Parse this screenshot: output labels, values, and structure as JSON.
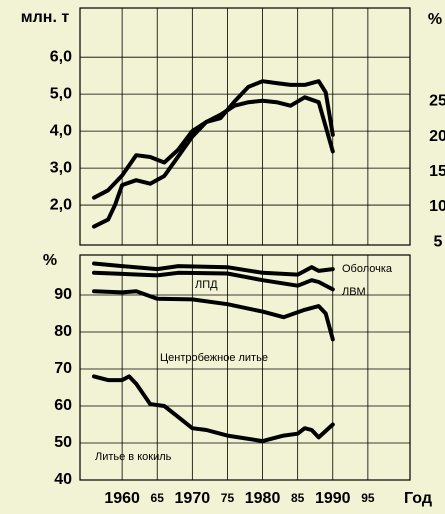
{
  "chart_data": [
    {
      "type": "line",
      "ylabel": "млн. т",
      "y2label": "%",
      "xlim": [
        1954,
        2001
      ],
      "ylim": [
        0.92,
        7.33
      ],
      "y2lim": [
        4.58,
        38.3
      ],
      "yticks": [
        {
          "value": 2,
          "label": "2,0"
        },
        {
          "value": 3,
          "label": "3,0"
        },
        {
          "value": 4,
          "label": "4,0"
        },
        {
          "value": 5,
          "label": "5,0"
        },
        {
          "value": 6,
          "label": "6,0"
        }
      ],
      "y2ticks": [
        5,
        10,
        15,
        20,
        25
      ],
      "grid": true,
      "series": [
        {
          "color": "#000000",
          "x": [
            1956,
            1958,
            1960,
            1962,
            1964,
            1966,
            1968,
            1970,
            1972,
            1974,
            1976,
            1978,
            1980,
            1982,
            1984,
            1986,
            1988,
            1989,
            1990
          ],
          "values": [
            2.2,
            2.4,
            2.8,
            3.35,
            3.3,
            3.15,
            3.5,
            4.0,
            4.25,
            4.35,
            4.8,
            5.2,
            5.35,
            5.3,
            5.25,
            5.25,
            5.35,
            5.05,
            3.9
          ]
        },
        {
          "color": "#000000",
          "axis": "y2",
          "x": [
            1956,
            1958,
            1959,
            1960,
            1962,
            1964,
            1966,
            1968,
            1970,
            1972,
            1974,
            1976,
            1978,
            1980,
            1982,
            1984,
            1986,
            1988,
            1990
          ],
          "values": [
            7.2,
            8.2,
            10.3,
            13.1,
            13.8,
            13.3,
            14.4,
            17.2,
            20,
            22.1,
            23.1,
            24.4,
            24.9,
            25.1,
            24.9,
            24.4,
            25.6,
            24.9,
            17.9
          ]
        }
      ]
    },
    {
      "type": "line",
      "ylabel": "%",
      "xlabel": "Год",
      "xlim": [
        1954,
        2001
      ],
      "ylim": [
        40,
        100.8
      ],
      "xticks": [
        1960,
        {
          "value": 1965,
          "label": "65"
        },
        1970,
        {
          "value": 1975,
          "label": "75"
        },
        1980,
        {
          "value": 1985,
          "label": "85"
        },
        1990,
        {
          "value": 1995,
          "label": "95"
        }
      ],
      "yticks": [
        40,
        50,
        60,
        70,
        80,
        90
      ],
      "grid": true,
      "annotations": [
        "ЛПД"
      ],
      "series": [
        {
          "name": "Оболочка",
          "color": "#000000",
          "x": [
            1956,
            1960,
            1965,
            1968,
            1975,
            1980,
            1985,
            1987,
            1988,
            1990
          ],
          "values": [
            98.5,
            97.8,
            97,
            97.8,
            97.5,
            96,
            95.5,
            97.5,
            96.5,
            97
          ]
        },
        {
          "name": "ЛВМ",
          "color": "#000000",
          "x": [
            1956,
            1960,
            1965,
            1968,
            1975,
            1980,
            1985,
            1987,
            1988,
            1990
          ],
          "values": [
            96,
            95.7,
            95.3,
            96,
            95.8,
            94,
            92.5,
            94,
            93.5,
            91.5
          ]
        },
        {
          "name": "Центробежное литье",
          "color": "#000000",
          "x": [
            1956,
            1960,
            1962,
            1965,
            1970,
            1975,
            1980,
            1983,
            1986,
            1988,
            1989,
            1990
          ],
          "values": [
            91,
            90.7,
            91,
            89,
            88.8,
            87.5,
            85.5,
            84,
            86,
            87,
            85,
            78
          ]
        },
        {
          "name": "Литье в кокиль",
          "color": "#000000",
          "x": [
            1956,
            1958,
            1960,
            1961,
            1962,
            1964,
            1966,
            1968,
            1970,
            1972,
            1975,
            1980,
            1983,
            1985,
            1986,
            1987,
            1988,
            1990
          ],
          "values": [
            68,
            67,
            67,
            68,
            66,
            60.5,
            60,
            57,
            54,
            53.5,
            52,
            50.5,
            52,
            52.5,
            54,
            53.5,
            51.5,
            55
          ]
        }
      ]
    }
  ]
}
